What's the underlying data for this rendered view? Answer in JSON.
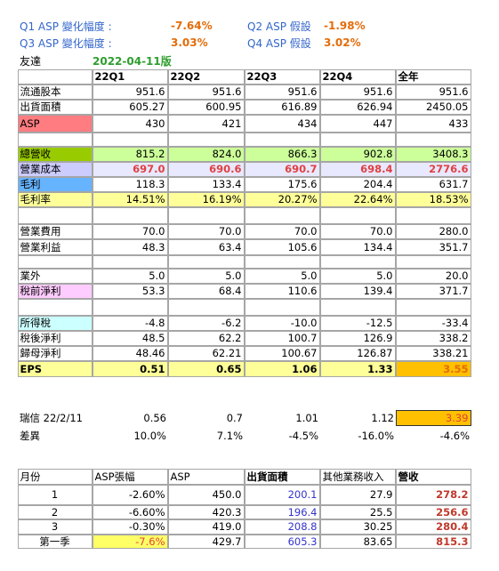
{
  "assumptions": [
    {
      "label": "Q1 ASP 變化幅度 :",
      "value": "-7.64%"
    },
    {
      "label": "Q2 ASP 假設",
      "value": "-1.98%"
    },
    {
      "label": "Q3 ASP 變化幅度 :",
      "value": "3.03%"
    },
    {
      "label": "Q4 ASP 假設",
      "value": "3.02%"
    }
  ],
  "company": "友達",
  "version": "2022-04-11版",
  "table": {
    "columns": [
      "22Q1",
      "22Q2",
      "22Q3",
      "22Q4",
      "全年"
    ],
    "rows": [
      {
        "label": "流通股本",
        "values": [
          "951.6",
          "951.6",
          "951.6",
          "951.6",
          "951.6"
        ]
      },
      {
        "label": "出貨面積",
        "values": [
          "605.27",
          "600.95",
          "616.89",
          "626.94",
          "2450.05"
        ]
      },
      {
        "label": "ASP",
        "values": [
          "430",
          "421",
          "434",
          "447",
          "433"
        ]
      },
      {
        "label": "總營收",
        "values": [
          "815.2",
          "824.0",
          "866.3",
          "902.8",
          "3408.3"
        ]
      },
      {
        "label": "營業成本",
        "values": [
          "697.0",
          "690.6",
          "690.7",
          "698.4",
          "2776.6"
        ]
      },
      {
        "label": "毛利",
        "values": [
          "118.3",
          "133.4",
          "175.6",
          "204.4",
          "631.7"
        ]
      },
      {
        "label": "毛利率",
        "values": [
          "14.51%",
          "16.19%",
          "20.27%",
          "22.64%",
          "18.53%"
        ]
      },
      {
        "label": "營業費用",
        "values": [
          "70.0",
          "70.0",
          "70.0",
          "70.0",
          "280.0"
        ]
      },
      {
        "label": "營業利益",
        "values": [
          "48.3",
          "63.4",
          "105.6",
          "134.4",
          "351.7"
        ]
      },
      {
        "label": "業外",
        "values": [
          "5.0",
          "5.0",
          "5.0",
          "5.0",
          "20.0"
        ]
      },
      {
        "label": "稅前淨利",
        "values": [
          "53.3",
          "68.4",
          "110.6",
          "139.4",
          "371.7"
        ]
      },
      {
        "label": "所得稅",
        "values": [
          "-4.8",
          "-6.2",
          "-10.0",
          "-12.5",
          "-33.4"
        ]
      },
      {
        "label": "稅後淨利",
        "values": [
          "48.5",
          "62.2",
          "100.7",
          "126.9",
          "338.2"
        ]
      },
      {
        "label": "歸母淨利",
        "values": [
          "48.46",
          "62.21",
          "100.67",
          "126.87",
          "338.21"
        ]
      },
      {
        "label": "EPS",
        "values": [
          "0.51",
          "0.65",
          "1.06",
          "1.33",
          "3.55"
        ]
      }
    ]
  },
  "consensus": {
    "rows": [
      {
        "label": "瑞信 22/2/11",
        "values": [
          "0.56",
          "0.7",
          "1.01",
          "1.12",
          "3.39"
        ]
      },
      {
        "label": "差異",
        "values": [
          "10.0%",
          "7.1%",
          "-4.5%",
          "-16.0%",
          "-4.6%"
        ]
      }
    ]
  },
  "monthly": {
    "columns": [
      "月份",
      "ASP張幅",
      "ASP",
      "出貨面積",
      "其他業務收入",
      "營收"
    ],
    "rows": [
      [
        "1",
        "-2.60%",
        "450.0",
        "200.1",
        "27.9",
        "278.2"
      ],
      [
        "2",
        "-6.60%",
        "420.3",
        "196.4",
        "25.5",
        "256.6"
      ],
      [
        "3",
        "-0.30%",
        "419.0",
        "208.8",
        "30.25",
        "280.4"
      ],
      [
        "第一季",
        "-7.6%",
        "429.7",
        "605.3",
        "83.65",
        "815.3"
      ]
    ]
  }
}
